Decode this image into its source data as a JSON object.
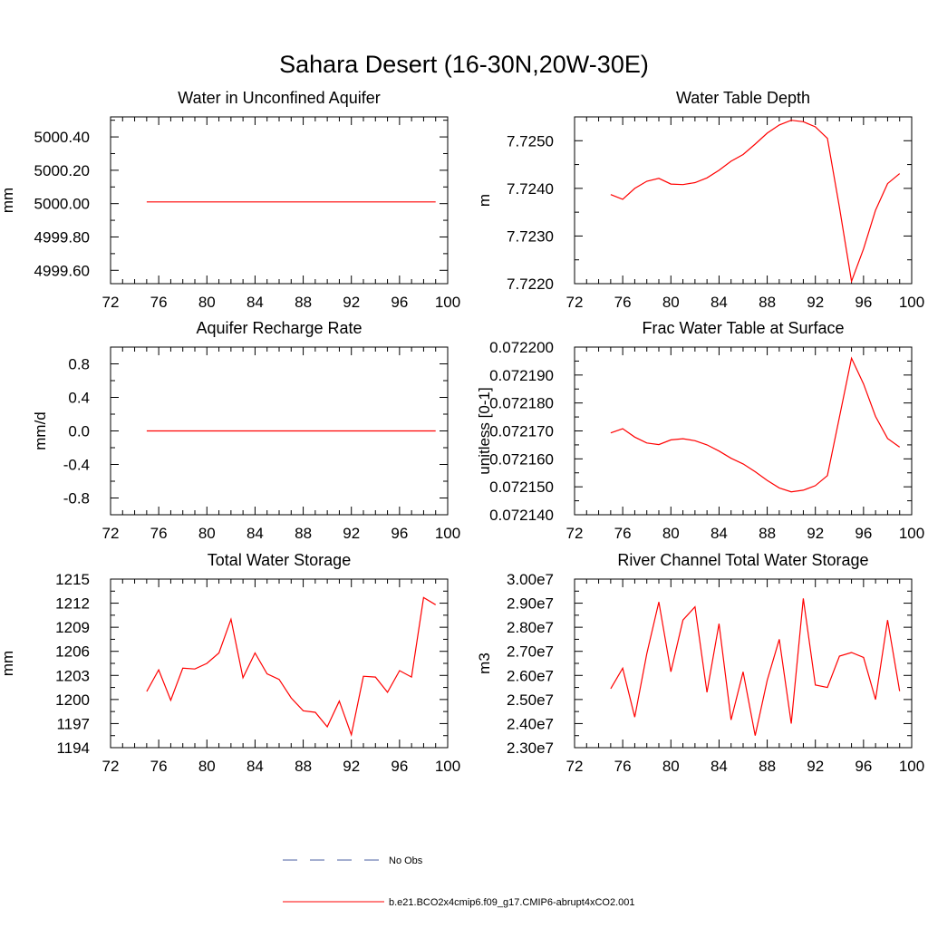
{
  "title": "Sahara Desert (16-30N,20W-30E)",
  "series_colors": {
    "model": "#ff0000",
    "obs": "#4a5fa0"
  },
  "legend": {
    "obs_label": "No Obs",
    "model_label": "b.e21.BCO2x4cmip6.f09_g17.CMIP6-abrupt4xCO2.001"
  },
  "chart_data": [
    {
      "type": "line",
      "title": "Water in Unconfined Aquifer",
      "ylabel": "mm",
      "xlim": [
        72,
        100
      ],
      "ylim": [
        4999.52,
        5000.52
      ],
      "xticks": [
        72,
        76,
        80,
        84,
        88,
        92,
        96,
        100
      ],
      "yticks": [
        4999.6,
        4999.8,
        5000.0,
        5000.2,
        5000.4
      ],
      "ytick_labels": [
        "4999.60",
        "4999.80",
        "5000.00",
        "5000.20",
        "5000.40"
      ],
      "x": [
        75,
        76,
        77,
        78,
        79,
        80,
        81,
        82,
        83,
        84,
        85,
        86,
        87,
        88,
        89,
        90,
        91,
        92,
        93,
        94,
        95,
        96,
        97,
        98,
        99
      ],
      "y": [
        5000.01,
        5000.01,
        5000.01,
        5000.01,
        5000.01,
        5000.01,
        5000.01,
        5000.01,
        5000.01,
        5000.01,
        5000.01,
        5000.01,
        5000.01,
        5000.01,
        5000.01,
        5000.01,
        5000.01,
        5000.01,
        5000.01,
        5000.01,
        5000.01,
        5000.01,
        5000.01,
        5000.01,
        5000.01
      ]
    },
    {
      "type": "line",
      "title": "Water Table Depth",
      "ylabel": "m",
      "xlim": [
        72,
        100
      ],
      "ylim": [
        7.722,
        7.7255
      ],
      "xticks": [
        72,
        76,
        80,
        84,
        88,
        92,
        96,
        100
      ],
      "yticks": [
        7.722,
        7.723,
        7.724,
        7.725
      ],
      "ytick_labels": [
        "7.7220",
        "7.7230",
        "7.7240",
        "7.7250"
      ],
      "x": [
        75,
        76,
        77,
        78,
        79,
        80,
        81,
        82,
        83,
        84,
        85,
        86,
        87,
        88,
        89,
        90,
        91,
        92,
        93,
        94,
        95,
        96,
        97,
        98,
        99
      ],
      "y": [
        7.72387,
        7.72377,
        7.724,
        7.72415,
        7.72421,
        7.72409,
        7.72408,
        7.72412,
        7.72422,
        7.72438,
        7.72457,
        7.72471,
        7.72493,
        7.72516,
        7.72533,
        7.72543,
        7.7254,
        7.72529,
        7.72505,
        7.7236,
        7.72205,
        7.72273,
        7.72354,
        7.7241,
        7.72431
      ]
    },
    {
      "type": "line",
      "title": "Aquifer Recharge Rate",
      "ylabel": "mm/d",
      "xlim": [
        72,
        100
      ],
      "ylim": [
        -1.0,
        1.0
      ],
      "xticks": [
        72,
        76,
        80,
        84,
        88,
        92,
        96,
        100
      ],
      "yticks": [
        -0.8,
        -0.4,
        0.0,
        0.4,
        0.8
      ],
      "ytick_labels": [
        "-0.8",
        "-0.4",
        "0.0",
        "0.4",
        "0.8"
      ],
      "x": [
        75,
        76,
        77,
        78,
        79,
        80,
        81,
        82,
        83,
        84,
        85,
        86,
        87,
        88,
        89,
        90,
        91,
        92,
        93,
        94,
        95,
        96,
        97,
        98,
        99
      ],
      "y": [
        0,
        0,
        0,
        0,
        0,
        0,
        0,
        0,
        0,
        0,
        0,
        0,
        0,
        0,
        0,
        0,
        0,
        0,
        0,
        0,
        0,
        0,
        0,
        0,
        0
      ]
    },
    {
      "type": "line",
      "title": "Frac Water Table at Surface",
      "ylabel": "unitless [0-1]",
      "xlim": [
        72,
        100
      ],
      "ylim": [
        0.07214,
        0.0722
      ],
      "xticks": [
        72,
        76,
        80,
        84,
        88,
        92,
        96,
        100
      ],
      "yticks": [
        0.07214,
        0.07215,
        0.07216,
        0.07217,
        0.07218,
        0.07219,
        0.0722
      ],
      "ytick_labels": [
        "0.072140",
        "0.072150",
        "0.072160",
        "0.072170",
        "0.072180",
        "0.072190",
        "0.072200"
      ],
      "x": [
        75,
        76,
        77,
        78,
        79,
        80,
        81,
        82,
        83,
        84,
        85,
        86,
        87,
        88,
        89,
        90,
        91,
        92,
        93,
        94,
        95,
        96,
        97,
        98,
        99
      ],
      "y": [
        0.0721693,
        0.0721708,
        0.0721678,
        0.0721657,
        0.0721651,
        0.0721668,
        0.0721672,
        0.0721665,
        0.072165,
        0.0721628,
        0.0721602,
        0.0721582,
        0.0721554,
        0.0721523,
        0.0721496,
        0.0721482,
        0.0721488,
        0.0721504,
        0.072154,
        0.072175,
        0.072196,
        0.0721868,
        0.0721752,
        0.0721673,
        0.0721642
      ]
    },
    {
      "type": "line",
      "title": "Total Water Storage",
      "ylabel": "mm",
      "xlim": [
        72,
        100
      ],
      "ylim": [
        1194,
        1215
      ],
      "xticks": [
        72,
        76,
        80,
        84,
        88,
        92,
        96,
        100
      ],
      "yticks": [
        1194,
        1197,
        1200,
        1203,
        1206,
        1209,
        1212,
        1215
      ],
      "ytick_labels": [
        "1194",
        "1197",
        "1200",
        "1203",
        "1206",
        "1209",
        "1212",
        "1215"
      ],
      "x": [
        75,
        76,
        77,
        78,
        79,
        80,
        81,
        82,
        83,
        84,
        85,
        86,
        87,
        88,
        89,
        90,
        91,
        92,
        93,
        94,
        95,
        96,
        97,
        98,
        99
      ],
      "y": [
        1201.0,
        1203.7,
        1199.9,
        1203.9,
        1203.8,
        1204.5,
        1205.8,
        1210.0,
        1202.7,
        1205.8,
        1203.2,
        1202.5,
        1200.2,
        1198.6,
        1198.4,
        1196.6,
        1199.8,
        1195.6,
        1202.9,
        1202.8,
        1200.9,
        1203.6,
        1202.8,
        1212.7,
        1211.8
      ]
    },
    {
      "type": "line",
      "title": "River Channel Total Water Storage",
      "ylabel": "m3",
      "xlim": [
        72,
        100
      ],
      "ylim": [
        23000000,
        30000000
      ],
      "xticks": [
        72,
        76,
        80,
        84,
        88,
        92,
        96,
        100
      ],
      "yticks": [
        23000000,
        24000000,
        25000000,
        26000000,
        27000000,
        28000000,
        29000000,
        30000000
      ],
      "ytick_labels": [
        "2.30e7",
        "2.40e7",
        "2.50e7",
        "2.60e7",
        "2.70e7",
        "2.80e7",
        "2.90e7",
        "3.00e7"
      ],
      "x": [
        75,
        76,
        77,
        78,
        79,
        80,
        81,
        82,
        83,
        84,
        85,
        86,
        87,
        88,
        89,
        90,
        91,
        92,
        93,
        94,
        95,
        96,
        97,
        98,
        99
      ],
      "y": [
        25450000,
        26300000,
        24270000,
        26900000,
        29050000,
        26150000,
        28300000,
        28850000,
        25300000,
        28150000,
        24150000,
        26150000,
        23500000,
        25800000,
        27500000,
        24000000,
        29200000,
        25600000,
        25500000,
        26800000,
        26950000,
        26750000,
        25000000,
        28300000,
        25350000
      ]
    }
  ]
}
